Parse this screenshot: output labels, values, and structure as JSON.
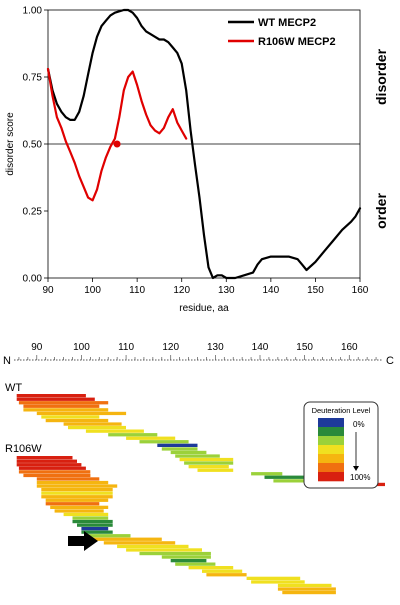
{
  "chart_data": [
    {
      "type": "line",
      "xlabel": "residue, aa",
      "ylabel": "disorder score",
      "xlim": [
        90,
        160
      ],
      "ylim": [
        0,
        1
      ],
      "x_ticks": [
        "90",
        "100",
        "110",
        "120",
        "130",
        "140",
        "150",
        "160"
      ],
      "y_ticks": [
        "0.00",
        "0.25",
        "0.50",
        "0.75",
        "1.00"
      ],
      "threshold": 0.5,
      "region_labels": {
        "upper": "disorder",
        "lower": "order"
      },
      "legend_position": "top-right",
      "highlight_point": {
        "x": 105.5,
        "y": 0.5,
        "color": "#e00000"
      },
      "series": [
        {
          "name": "WT MECP2",
          "color": "#000000",
          "x": [
            90,
            91,
            92,
            93,
            94,
            95,
            96,
            97,
            98,
            99,
            100,
            101,
            102,
            103,
            104,
            105,
            106,
            107,
            108,
            109,
            110,
            111,
            112,
            113,
            114,
            115,
            116,
            117,
            118,
            119,
            120,
            121,
            122,
            123,
            124,
            125,
            126,
            127,
            128,
            129,
            130,
            132,
            134,
            136,
            137,
            138,
            140,
            142,
            144,
            146,
            147,
            148,
            150,
            152,
            154,
            156,
            158,
            159,
            160
          ],
          "y": [
            0.78,
            0.7,
            0.65,
            0.62,
            0.6,
            0.59,
            0.59,
            0.62,
            0.68,
            0.76,
            0.84,
            0.9,
            0.94,
            0.96,
            0.98,
            0.99,
            0.995,
            1.0,
            1.0,
            0.99,
            0.97,
            0.94,
            0.92,
            0.91,
            0.9,
            0.89,
            0.89,
            0.88,
            0.86,
            0.84,
            0.8,
            0.7,
            0.55,
            0.42,
            0.3,
            0.16,
            0.04,
            0.0,
            0.01,
            0.01,
            0.0,
            0.0,
            0.01,
            0.02,
            0.05,
            0.07,
            0.08,
            0.08,
            0.08,
            0.07,
            0.05,
            0.03,
            0.06,
            0.1,
            0.14,
            0.18,
            0.21,
            0.23,
            0.26
          ]
        },
        {
          "name": "R106W MECP2",
          "color": "#e00000",
          "x": [
            90,
            91,
            92,
            93,
            94,
            95,
            96,
            97,
            98,
            99,
            100,
            101,
            102,
            103,
            104,
            105,
            106,
            107,
            108,
            109,
            110,
            111,
            112,
            113,
            114,
            115,
            116,
            117,
            118,
            119,
            120,
            121
          ],
          "y": [
            0.78,
            0.68,
            0.6,
            0.56,
            0.51,
            0.47,
            0.43,
            0.38,
            0.34,
            0.3,
            0.29,
            0.33,
            0.4,
            0.45,
            0.49,
            0.52,
            0.6,
            0.7,
            0.75,
            0.77,
            0.72,
            0.66,
            0.61,
            0.57,
            0.55,
            0.54,
            0.56,
            0.6,
            0.63,
            0.58,
            0.55,
            0.52
          ]
        }
      ]
    },
    {
      "type": "heatmap",
      "axis_start_label": "N",
      "axis_end_label": "C",
      "x_ticks": [
        "90",
        "100",
        "110",
        "120",
        "130",
        "140",
        "150",
        "160"
      ],
      "xlim": [
        84,
        168
      ],
      "legend": {
        "title": "Deuteration Level",
        "low_label": "0%",
        "high_label": "100%"
      },
      "color_scale": [
        "#1e3a9a",
        "#2a8a3a",
        "#9bd13a",
        "#f0e020",
        "#f5b510",
        "#f07010",
        "#d82010"
      ],
      "groups": [
        {
          "label": "WT",
          "peptides": [
            {
              "start": 85.5,
              "end": 101,
              "level": 6
            },
            {
              "start": 85.5,
              "end": 103,
              "level": 6
            },
            {
              "start": 86,
              "end": 106,
              "level": 5
            },
            {
              "start": 87,
              "end": 104,
              "level": 5
            },
            {
              "start": 87,
              "end": 106,
              "level": 4
            },
            {
              "start": 90,
              "end": 110,
              "level": 4
            },
            {
              "start": 91,
              "end": 104,
              "level": 3
            },
            {
              "start": 92,
              "end": 106,
              "level": 4
            },
            {
              "start": 96,
              "end": 109,
              "level": 4
            },
            {
              "start": 97,
              "end": 110,
              "level": 3
            },
            {
              "start": 101,
              "end": 114,
              "level": 3
            },
            {
              "start": 106,
              "end": 117,
              "level": 2
            },
            {
              "start": 110,
              "end": 121,
              "level": 3
            },
            {
              "start": 113,
              "end": 124,
              "level": 2
            },
            {
              "start": 117,
              "end": 126,
              "level": 0
            },
            {
              "start": 118,
              "end": 126,
              "level": 2
            },
            {
              "start": 120,
              "end": 128,
              "level": 2
            },
            {
              "start": 121,
              "end": 131,
              "level": 2
            },
            {
              "start": 122,
              "end": 134,
              "level": 3
            },
            {
              "start": 123,
              "end": 134,
              "level": 2
            },
            {
              "start": 124,
              "end": 133,
              "level": 3
            },
            {
              "start": 126,
              "end": 134,
              "level": 3
            },
            {
              "start": 138,
              "end": 145,
              "level": 2
            },
            {
              "start": 141,
              "end": 152,
              "level": 1
            },
            {
              "start": 143,
              "end": 153,
              "level": 2
            },
            {
              "start": 153,
              "end": 168,
              "level": 6
            }
          ]
        },
        {
          "label": "R106W",
          "peptides": [
            {
              "start": 85.5,
              "end": 98,
              "level": 6
            },
            {
              "start": 85.5,
              "end": 99,
              "level": 6
            },
            {
              "start": 85.5,
              "end": 100,
              "level": 6
            },
            {
              "start": 86,
              "end": 101,
              "level": 6
            },
            {
              "start": 86,
              "end": 102,
              "level": 5
            },
            {
              "start": 87,
              "end": 102,
              "level": 5
            },
            {
              "start": 90,
              "end": 104,
              "level": 5
            },
            {
              "start": 90,
              "end": 106,
              "level": 4
            },
            {
              "start": 90,
              "end": 108,
              "level": 4
            },
            {
              "start": 91,
              "end": 107,
              "level": 4
            },
            {
              "start": 91,
              "end": 107,
              "level": 3
            },
            {
              "start": 91,
              "end": 107,
              "level": 4
            },
            {
              "start": 92,
              "end": 106,
              "level": 4
            },
            {
              "start": 92,
              "end": 104,
              "level": 5
            },
            {
              "start": 93,
              "end": 106,
              "level": 4
            },
            {
              "start": 94,
              "end": 105,
              "level": 4
            },
            {
              "start": 96,
              "end": 106,
              "level": 3
            },
            {
              "start": 98,
              "end": 106,
              "level": 2
            },
            {
              "start": 98,
              "end": 107,
              "level": 1
            },
            {
              "start": 99,
              "end": 107,
              "level": 1
            },
            {
              "start": 100,
              "end": 106,
              "level": 0
            },
            {
              "start": 100,
              "end": 107,
              "level": 1
            },
            {
              "start": 101,
              "end": 111,
              "level": 2
            },
            {
              "start": 102,
              "end": 118,
              "level": 4
            },
            {
              "start": 105,
              "end": 121,
              "level": 4
            },
            {
              "start": 108,
              "end": 124,
              "level": 3
            },
            {
              "start": 110,
              "end": 127,
              "level": 3
            },
            {
              "start": 113,
              "end": 129,
              "level": 2
            },
            {
              "start": 118,
              "end": 129,
              "level": 2
            },
            {
              "start": 120,
              "end": 128,
              "level": 1
            },
            {
              "start": 121,
              "end": 130,
              "level": 2
            },
            {
              "start": 124,
              "end": 134,
              "level": 3
            },
            {
              "start": 127,
              "end": 136,
              "level": 3
            },
            {
              "start": 128,
              "end": 137,
              "level": 4
            },
            {
              "start": 137,
              "end": 149,
              "level": 3
            },
            {
              "start": 138,
              "end": 150,
              "level": 3
            },
            {
              "start": 144,
              "end": 156,
              "level": 3
            },
            {
              "start": 144,
              "end": 157,
              "level": 4
            },
            {
              "start": 145,
              "end": 157,
              "level": 4
            }
          ]
        }
      ],
      "arrow_marker": {
        "direction": "right"
      }
    }
  ]
}
